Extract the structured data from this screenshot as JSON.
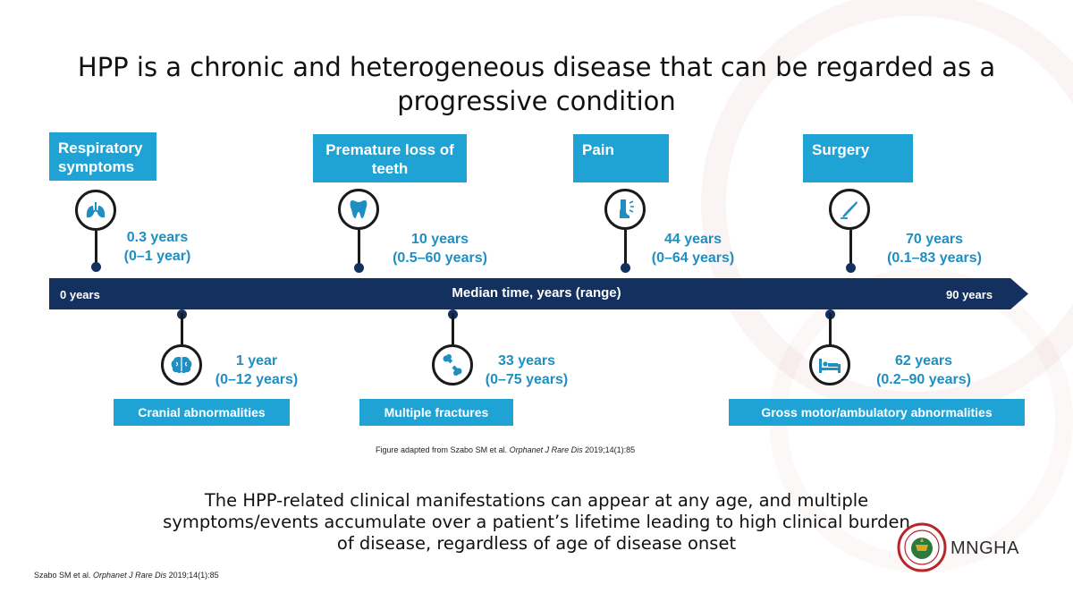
{
  "title": "HPP is a chronic and heterogeneous disease that can be regarded as a progressive condition",
  "timeline": {
    "start_label": "0 years",
    "end_label": "90 years",
    "axis_label": "Median time, years (range)",
    "bar_color": "#13305f"
  },
  "events_top": [
    {
      "label": "Respiratory symptoms",
      "median": "0.3 years",
      "range": "(0–1 year)",
      "icon": "lungs-icon"
    },
    {
      "label": "Premature loss of teeth",
      "median": "10 years",
      "range": "(0.5–60 years)",
      "icon": "tooth-icon"
    },
    {
      "label": "Pain",
      "median": "44 years",
      "range": "(0–64 years)",
      "icon": "leg-pain-icon"
    },
    {
      "label": "Surgery",
      "median": "70 years",
      "range": "(0.1–83 years)",
      "icon": "scalpel-icon"
    }
  ],
  "events_bottom": [
    {
      "label": "Cranial abnormalities",
      "median": "1 year",
      "range": "(0–12 years)",
      "icon": "brain-icon"
    },
    {
      "label": "Multiple fractures",
      "median": "33 years",
      "range": "(0–75 years)",
      "icon": "bone-icon"
    },
    {
      "label": "Gross motor/ambulatory abnormalities",
      "median": "62 years",
      "range": "(0.2–90 years)",
      "icon": "bed-icon"
    }
  ],
  "credit_prefix": "Figure adapted from Szabo SM et al. ",
  "credit_journal": "Orphanet J Rare Dis",
  "credit_suffix": " 2019;14(1):85",
  "summary": "The HPP-related clinical manifestations can appear at any age, and multiple symptoms/events accumulate over a patient’s lifetime leading to high clinical burden of disease, regardless of age of disease onset",
  "ref_prefix": "Szabo SM et al. ",
  "ref_journal": "Orphanet J Rare Dis",
  "ref_suffix": " 2019;14(1):85",
  "logo_text": "MNGHA",
  "accent_color": "#1fa3d4",
  "label_color": "#1f8ec0"
}
